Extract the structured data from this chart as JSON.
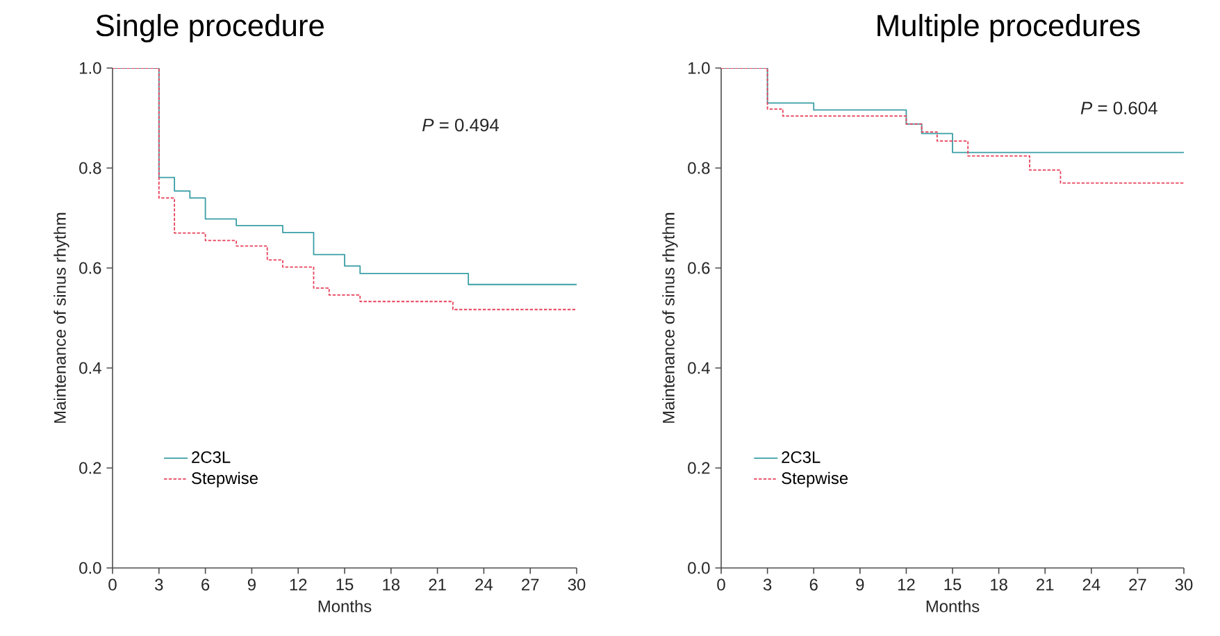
{
  "chart_data": [
    {
      "type": "step",
      "title": "Single procedure",
      "xlabel": "Months",
      "ylabel": "Maintenance of sinus rhythm",
      "xlim": [
        0,
        30
      ],
      "ylim": [
        0,
        1
      ],
      "xticks": [
        0,
        3,
        6,
        9,
        12,
        15,
        18,
        21,
        24,
        27,
        30
      ],
      "yticks": [
        {
          "value": 0,
          "label": "0.0"
        },
        {
          "value": 0.2,
          "label": "0.2"
        },
        {
          "value": 0.4,
          "label": "0.4"
        },
        {
          "value": 0.6,
          "label": "0.6"
        },
        {
          "value": 0.8,
          "label": "0.8"
        },
        {
          "value": 1,
          "label": "1.0"
        }
      ],
      "legend": "bottom left",
      "annotations": [
        "*P* = 0.494"
      ],
      "series": [
        {
          "name": "2C3L",
          "color": "#3a9ea5",
          "line_style": "solid",
          "x": [
            0,
            3,
            4,
            5,
            6,
            8,
            11,
            13,
            15,
            16,
            23,
            30
          ],
          "values": [
            1.0,
            0.781,
            0.754,
            0.74,
            0.698,
            0.685,
            0.671,
            0.627,
            0.604,
            0.589,
            0.567,
            0.567
          ]
        },
        {
          "name": "Stepwise",
          "color": "#e8405a",
          "line_style": "dashed",
          "x": [
            0,
            3,
            4,
            6,
            8,
            10,
            11,
            13,
            14,
            16,
            22,
            30
          ],
          "values": [
            1.0,
            0.74,
            0.67,
            0.655,
            0.644,
            0.616,
            0.602,
            0.56,
            0.546,
            0.533,
            0.517,
            0.517
          ]
        }
      ]
    },
    {
      "type": "step",
      "title": "Multiple procedures",
      "xlabel": "Months",
      "ylabel": "Maintenance of sinus rhythm",
      "xlim": [
        0,
        30
      ],
      "ylim": [
        0,
        1
      ],
      "xticks": [
        0,
        3,
        6,
        9,
        12,
        15,
        18,
        21,
        24,
        27,
        30
      ],
      "yticks": [
        {
          "value": 0,
          "label": "0.0"
        },
        {
          "value": 0.2,
          "label": "0.2"
        },
        {
          "value": 0.4,
          "label": "0.4"
        },
        {
          "value": 0.6,
          "label": "0.6"
        },
        {
          "value": 0.8,
          "label": "0.8"
        },
        {
          "value": 1,
          "label": "1.0"
        }
      ],
      "legend": "bottom left",
      "annotations": [
        "*P* = 0.604"
      ],
      "series": [
        {
          "name": "2C3L",
          "color": "#3a9ea5",
          "line_style": "solid",
          "x": [
            0,
            3,
            6,
            12,
            13,
            15,
            30
          ],
          "values": [
            1.0,
            0.93,
            0.916,
            0.888,
            0.869,
            0.831,
            0.831
          ]
        },
        {
          "name": "Stepwise",
          "color": "#e8405a",
          "line_style": "dashed",
          "x": [
            0,
            3,
            4,
            12,
            13,
            14,
            16,
            20,
            22,
            30
          ],
          "values": [
            1.0,
            0.918,
            0.904,
            0.888,
            0.872,
            0.854,
            0.824,
            0.796,
            0.77,
            0.77
          ]
        }
      ]
    }
  ]
}
